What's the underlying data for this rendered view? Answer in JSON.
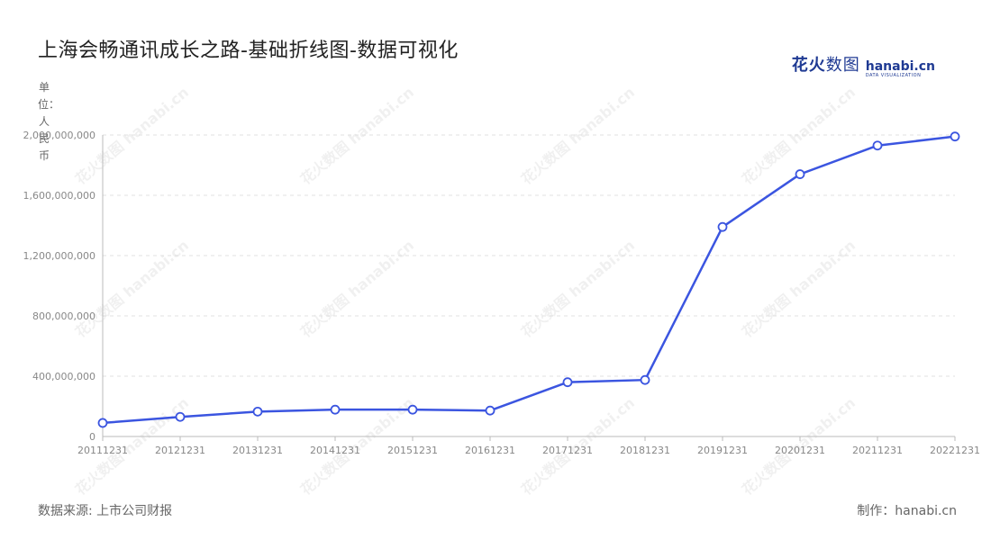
{
  "page": {
    "title": "上海会畅通讯成长之路-基础折线图-数据可视化",
    "unit_label": "单位：人民币",
    "source": "数据来源: 上市公司财报",
    "credit": "制作：hanabi.cn",
    "brand": {
      "cn_bold": "花火",
      "cn_thin": "数图",
      "en": "hanabi.cn",
      "en_sub": "DATA VISUALIZATION"
    },
    "watermark_text": "花火数图 hanabi.cn"
  },
  "chart_data": {
    "type": "line",
    "title": "上海会畅通讯成长之路-基础折线图-数据可视化",
    "xlabel": "",
    "ylabel": "单位：人民币",
    "categories": [
      "20111231",
      "20121231",
      "20131231",
      "20141231",
      "20151231",
      "20161231",
      "20171231",
      "20181231",
      "20191231",
      "20201231",
      "20211231",
      "20221231"
    ],
    "series": [
      {
        "values": [
          90000000,
          130000000,
          165000000,
          178000000,
          178000000,
          172000000,
          360000000,
          375000000,
          1390000000,
          1740000000,
          1930000000,
          1990000000
        ]
      }
    ],
    "ylim": [
      0,
      2000000000
    ],
    "yticks": [
      0,
      400000000,
      800000000,
      1200000000,
      1600000000,
      2000000000
    ],
    "ytick_labels": [
      "0",
      "400,000,000",
      "800,000,000",
      "1,200,000,000",
      "1,600,000,000",
      "2,000,000,000"
    ],
    "grid": "horizontal-dashed",
    "legend": "none",
    "colors": {
      "line": "#3b55e0",
      "point_fill": "#ffffff",
      "grid": "#e0e0e0",
      "axis": "#bbbbbb",
      "tick_text": "#888888"
    }
  }
}
